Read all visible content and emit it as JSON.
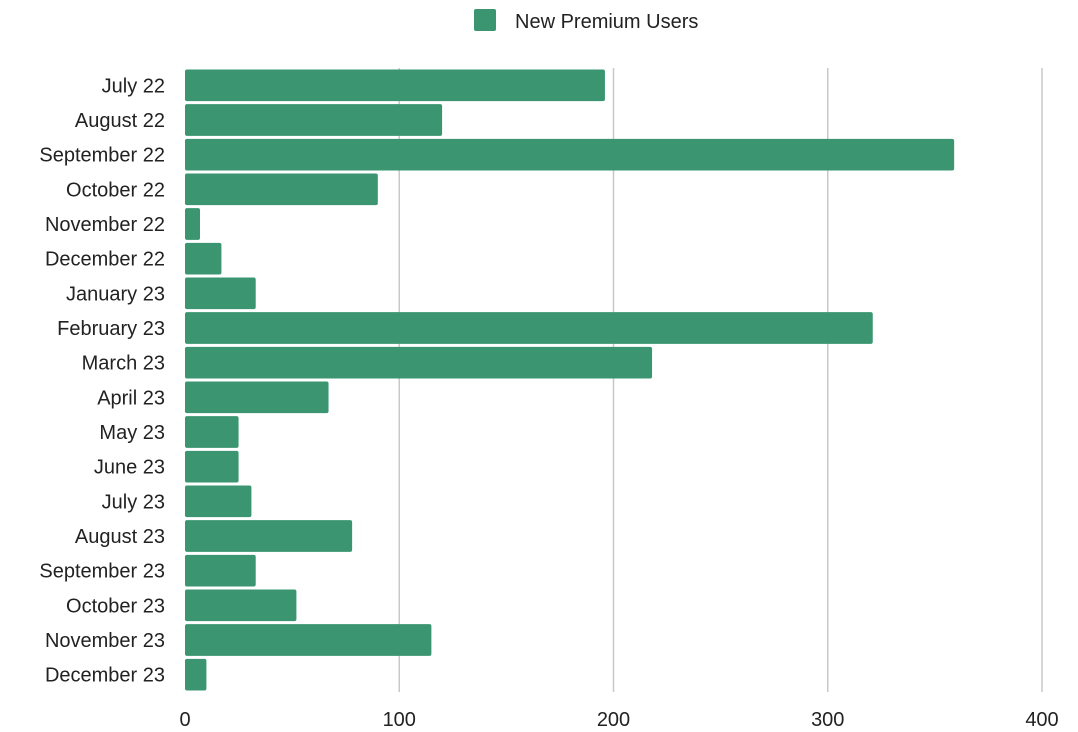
{
  "chart_data": {
    "type": "bar",
    "orientation": "horizontal",
    "categories": [
      "July 22",
      "August 22",
      "September 22",
      "October 22",
      "November 22",
      "December 22",
      "January 23",
      "February 23",
      "March 23",
      "April 23",
      "May 23",
      "June 23",
      "July 23",
      "August 23",
      "September 23",
      "October 23",
      "November 23",
      "December 23"
    ],
    "series": [
      {
        "name": "New Premium Users",
        "values": [
          196,
          120,
          359,
          90,
          7,
          17,
          33,
          321,
          218,
          67,
          25,
          25,
          31,
          78,
          33,
          52,
          115,
          10
        ]
      }
    ],
    "xlim": [
      0,
      400
    ],
    "xticks": [
      0,
      100,
      200,
      300,
      400
    ],
    "grid": "vertical",
    "legend_position": "top-center",
    "bar_color": "#3a9570",
    "title": "",
    "xlabel": "",
    "ylabel": ""
  }
}
